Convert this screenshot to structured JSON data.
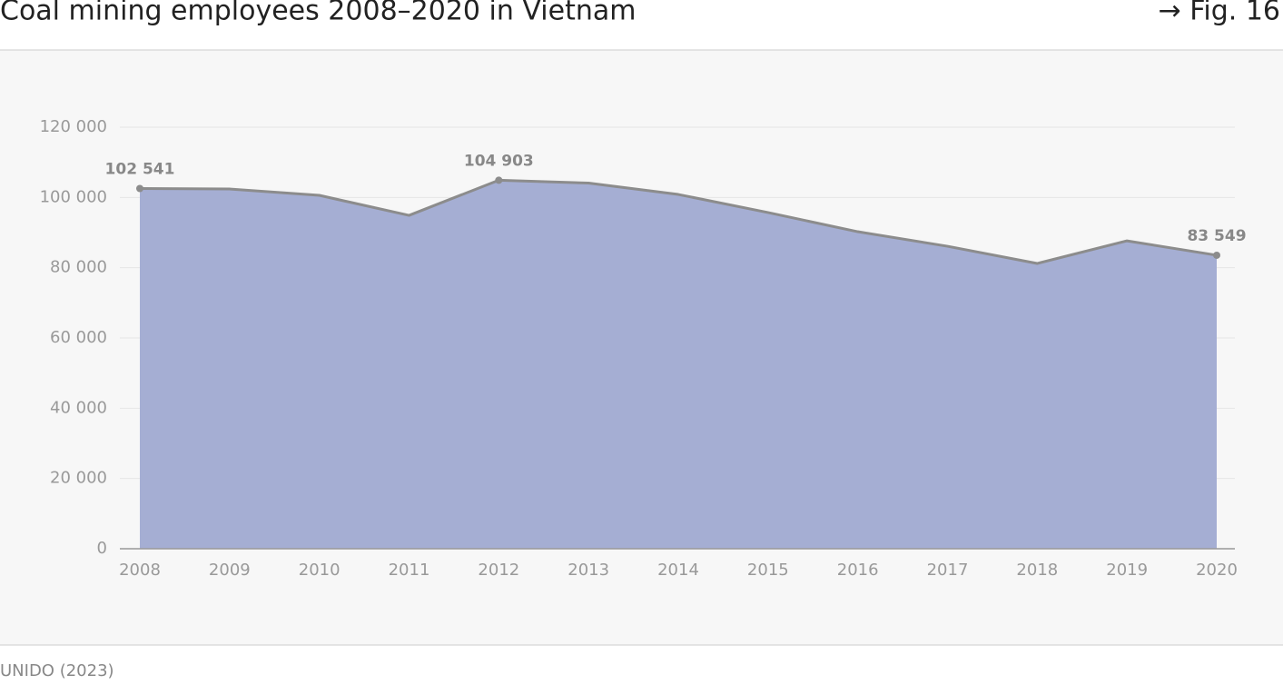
{
  "chart_data": {
    "type": "area",
    "title": "Coal mining employees 2008–2020 in Vietnam",
    "figure_ref": "→ Fig. 16",
    "source": "UNIDO (2023)",
    "categories": [
      "2008",
      "2009",
      "2010",
      "2011",
      "2012",
      "2013",
      "2014",
      "2015",
      "2016",
      "2017",
      "2018",
      "2019",
      "2020"
    ],
    "values": [
      102541,
      102400,
      100600,
      94900,
      104903,
      104100,
      100850,
      95700,
      90250,
      86100,
      81200,
      87650,
      83549
    ],
    "value_labels": [
      "102 541",
      null,
      null,
      null,
      "104 903",
      null,
      null,
      null,
      null,
      null,
      null,
      null,
      "83 549"
    ],
    "color": "#a5aed3",
    "line_color": "#8c8c8c",
    "ylim": [
      0,
      120000
    ],
    "yticks": [
      0,
      {
        "value": 20000,
        "label": "20 000"
      },
      {
        "value": 40000,
        "label": "40 000"
      },
      {
        "value": 60000,
        "label": "60 000"
      },
      {
        "value": 80000,
        "label": "80 000"
      },
      {
        "value": 100000,
        "label": "100 000"
      },
      {
        "value": 120000,
        "label": "120 000"
      }
    ],
    "grid": true
  }
}
